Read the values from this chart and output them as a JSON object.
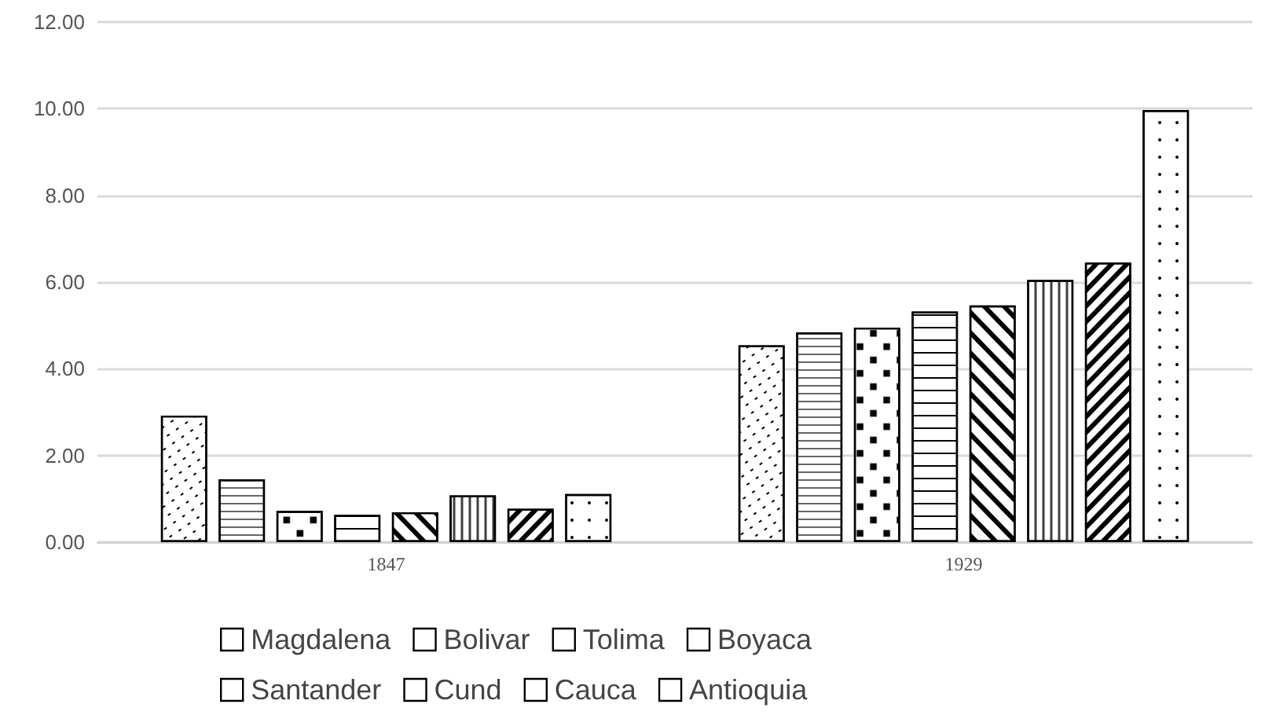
{
  "chart_data": {
    "type": "bar",
    "categories": [
      "1847",
      "1929"
    ],
    "series": [
      {
        "name": "Magdalena",
        "color": "#ffffff",
        "values": [
          2.92,
          4.54
        ]
      },
      {
        "name": "Bolivar",
        "color": "#ffffff",
        "values": [
          1.45,
          4.84
        ]
      },
      {
        "name": "Tolima",
        "color": "#ffffff",
        "values": [
          0.72,
          4.95
        ]
      },
      {
        "name": "Boyaca",
        "color": "#ffffff",
        "values": [
          0.63,
          5.32
        ]
      },
      {
        "name": "Santander",
        "color": "#ffffff",
        "values": [
          0.69,
          5.46
        ]
      },
      {
        "name": "Cund",
        "color": "#ffffff",
        "values": [
          1.08,
          6.05
        ]
      },
      {
        "name": "Cauca",
        "color": "#ffffff",
        "values": [
          0.77,
          6.45
        ]
      },
      {
        "name": "Antioquia",
        "color": "#ffffff",
        "values": [
          1.11,
          9.97
        ]
      }
    ],
    "ylim": [
      0,
      12
    ],
    "yticks": [
      {
        "value": 0,
        "label": "0.00"
      },
      {
        "value": 2,
        "label": "2.00"
      },
      {
        "value": 4,
        "label": "4.00"
      },
      {
        "value": 6,
        "label": "6.00"
      },
      {
        "value": 8,
        "label": "8.00"
      },
      {
        "value": 10,
        "label": "10.00"
      },
      {
        "value": 12,
        "label": "12.00"
      }
    ],
    "grid": "y",
    "legend": "bottom"
  }
}
